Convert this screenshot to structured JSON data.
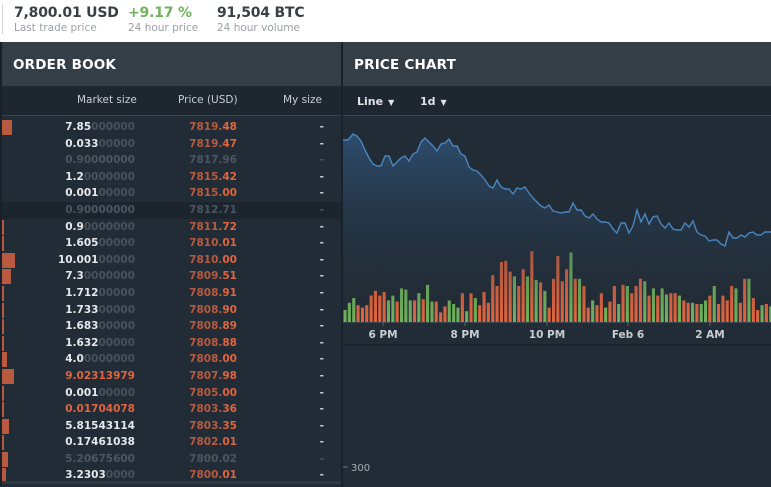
{
  "ticker": {
    "last_trade": {
      "value": "7,800.01 USD",
      "label": "Last trade price"
    },
    "change": {
      "value": "+9.17 %",
      "label": "24 hour price"
    },
    "volume": {
      "value": "91,504 BTC",
      "label": "24 hour volume"
    }
  },
  "orderbook": {
    "title": "ORDER BOOK",
    "columns": {
      "market_size": "Market size",
      "price": "Price (USD)",
      "my_size": "My size"
    },
    "rows": [
      {
        "sig": "7.85",
        "pad": "000000",
        "pfx": "7819.",
        "sfx": "48",
        "mine": "-",
        "bar": 10,
        "style": ""
      },
      {
        "sig": "0.033",
        "pad": "00000",
        "pfx": "7819.",
        "sfx": "47",
        "mine": "-",
        "bar": 0,
        "style": ""
      },
      {
        "sig": "0.90000000",
        "pad": "",
        "pfx": "7817.",
        "sfx": "96",
        "mine": "-",
        "bar": 0,
        "style": "dim"
      },
      {
        "sig": "1.2",
        "pad": "0000000",
        "pfx": "7815.",
        "sfx": "42",
        "mine": "-",
        "bar": 0,
        "style": ""
      },
      {
        "sig": "0.001",
        "pad": "00000",
        "pfx": "7815.",
        "sfx": "00",
        "mine": "-",
        "bar": 0,
        "style": ""
      },
      {
        "sig": "0.90000000",
        "pad": "",
        "pfx": "7812.",
        "sfx": "71",
        "mine": "-",
        "bar": 0,
        "style": "dim hl"
      },
      {
        "sig": "0.9",
        "pad": "0000000",
        "pfx": "7811.",
        "sfx": "72",
        "mine": "-",
        "bar": 2,
        "style": ""
      },
      {
        "sig": "1.605",
        "pad": "00000",
        "pfx": "7810.",
        "sfx": "01",
        "mine": "-",
        "bar": 2,
        "style": ""
      },
      {
        "sig": "10.001",
        "pad": "00000",
        "pfx": "7810.",
        "sfx": "00",
        "mine": "-",
        "bar": 13,
        "style": ""
      },
      {
        "sig": "7.3",
        "pad": "0000000",
        "pfx": "7809.",
        "sfx": "51",
        "mine": "-",
        "bar": 9,
        "style": ""
      },
      {
        "sig": "1.712",
        "pad": "00000",
        "pfx": "7808.",
        "sfx": "91",
        "mine": "-",
        "bar": 2,
        "style": ""
      },
      {
        "sig": "1.733",
        "pad": "00000",
        "pfx": "7808.",
        "sfx": "90",
        "mine": "-",
        "bar": 2,
        "style": ""
      },
      {
        "sig": "1.683",
        "pad": "00000",
        "pfx": "7808.",
        "sfx": "89",
        "mine": "-",
        "bar": 2,
        "style": ""
      },
      {
        "sig": "1.632",
        "pad": "00000",
        "pfx": "7808.",
        "sfx": "88",
        "mine": "-",
        "bar": 2,
        "style": ""
      },
      {
        "sig": "4.0",
        "pad": "0000000",
        "pfx": "7808.",
        "sfx": "00",
        "mine": "-",
        "bar": 5,
        "style": ""
      },
      {
        "sig": "9.02313979",
        "pad": "",
        "pfx": "7807.",
        "sfx": "98",
        "mine": "-",
        "bar": 12,
        "style": "red"
      },
      {
        "sig": "0.001",
        "pad": "00000",
        "pfx": "7805.",
        "sfx": "00",
        "mine": "-",
        "bar": 2,
        "style": ""
      },
      {
        "sig": "0.01704078",
        "pad": "",
        "pfx": "7803.",
        "sfx": "36",
        "mine": "-",
        "bar": 2,
        "style": "red"
      },
      {
        "sig": "5.81543114",
        "pad": "",
        "pfx": "7803.",
        "sfx": "35",
        "mine": "-",
        "bar": 7,
        "style": ""
      },
      {
        "sig": "0.17461038",
        "pad": "",
        "pfx": "7802.",
        "sfx": "01",
        "mine": "-",
        "bar": 2,
        "style": ""
      },
      {
        "sig": "5.20675600",
        "pad": "",
        "pfx": "7800.",
        "sfx": "02",
        "mine": "-",
        "bar": 6,
        "style": "dim"
      },
      {
        "sig": "3.2303",
        "pad": "0000",
        "pfx": "7800.",
        "sfx": "01",
        "mine": "-",
        "bar": 4,
        "style": ""
      }
    ]
  },
  "pricechart": {
    "title": "PRICE CHART",
    "chart_type": "Line",
    "interval": "1d",
    "x_ticks": [
      "6 PM",
      "8 PM",
      "10 PM",
      "Feb 6",
      "2 AM"
    ],
    "y_tick": "300"
  },
  "colors": {
    "up": "#6fb25c",
    "down": "#e0653f",
    "line": "#4a86c0",
    "panel_bg": "#222c36",
    "header_bg": "#333e47"
  }
}
